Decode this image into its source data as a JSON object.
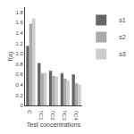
{
  "chart_data": {
    "type": "bar",
    "categories": [
      "C",
      "TC1",
      "TC2",
      "TC3",
      "TC4"
    ],
    "series": [
      {
        "name": "s1",
        "color": "#666666",
        "values": [
          1.15,
          0.82,
          0.67,
          0.62,
          0.6
        ]
      },
      {
        "name": "s2",
        "color": "#aaaaaa",
        "values": [
          1.58,
          0.62,
          0.57,
          0.52,
          0.43
        ]
      },
      {
        "name": "s3",
        "color": "#cccccc",
        "values": [
          1.68,
          0.63,
          0.56,
          0.48,
          0.4
        ]
      }
    ],
    "xlabel": "Test concentrations",
    "ylabel": "f(a)",
    "ylim": [
      0,
      1.9
    ],
    "yticks": [
      0,
      0.2,
      0.4,
      0.6,
      0.8,
      {
        "value": 1,
        "label": "1.0"
      },
      1.2,
      1.4,
      1.6,
      1.8
    ],
    "grid": false,
    "legend": "upper right"
  }
}
